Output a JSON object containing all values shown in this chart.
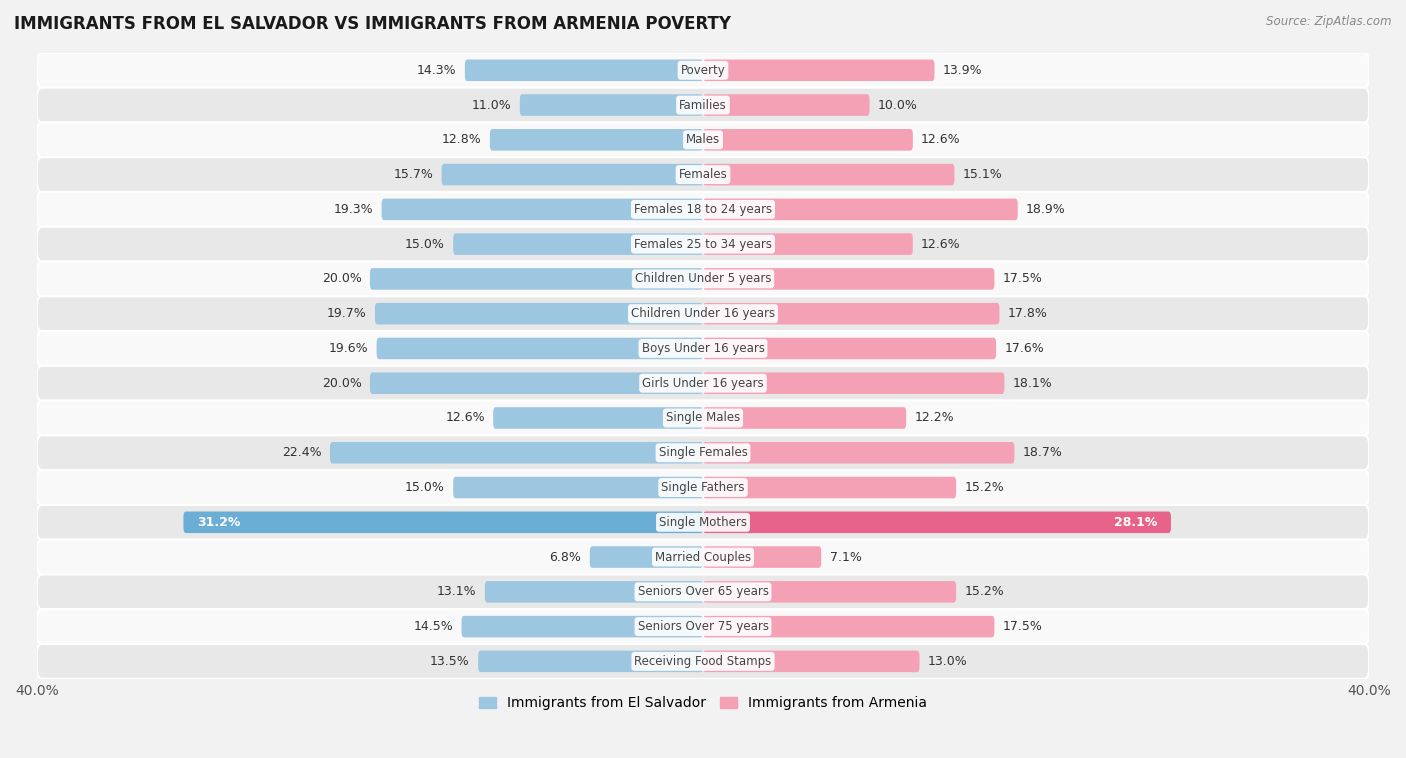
{
  "title": "IMMIGRANTS FROM EL SALVADOR VS IMMIGRANTS FROM ARMENIA POVERTY",
  "source": "Source: ZipAtlas.com",
  "categories": [
    "Poverty",
    "Families",
    "Males",
    "Females",
    "Females 18 to 24 years",
    "Females 25 to 34 years",
    "Children Under 5 years",
    "Children Under 16 years",
    "Boys Under 16 years",
    "Girls Under 16 years",
    "Single Males",
    "Single Females",
    "Single Fathers",
    "Single Mothers",
    "Married Couples",
    "Seniors Over 65 years",
    "Seniors Over 75 years",
    "Receiving Food Stamps"
  ],
  "el_salvador": [
    14.3,
    11.0,
    12.8,
    15.7,
    19.3,
    15.0,
    20.0,
    19.7,
    19.6,
    20.0,
    12.6,
    22.4,
    15.0,
    31.2,
    6.8,
    13.1,
    14.5,
    13.5
  ],
  "armenia": [
    13.9,
    10.0,
    12.6,
    15.1,
    18.9,
    12.6,
    17.5,
    17.8,
    17.6,
    18.1,
    12.2,
    18.7,
    15.2,
    28.1,
    7.1,
    15.2,
    17.5,
    13.0
  ],
  "el_salvador_color": "#9dc6e0",
  "armenia_color": "#f4a0b5",
  "el_salvador_highlight": "#6aaed6",
  "armenia_highlight": "#e8638a",
  "background_color": "#f2f2f2",
  "row_color_light": "#f9f9f9",
  "row_color_dark": "#e8e8e8",
  "highlight_row": "Single Mothers",
  "xlim": 40.0,
  "legend_label_left": "Immigrants from El Salvador",
  "legend_label_right": "Immigrants from Armenia",
  "bar_height": 0.62,
  "label_fontsize": 9.0,
  "category_fontsize": 8.5,
  "title_fontsize": 12,
  "value_label_color": "#333333",
  "value_label_highlight": "#ffffff"
}
